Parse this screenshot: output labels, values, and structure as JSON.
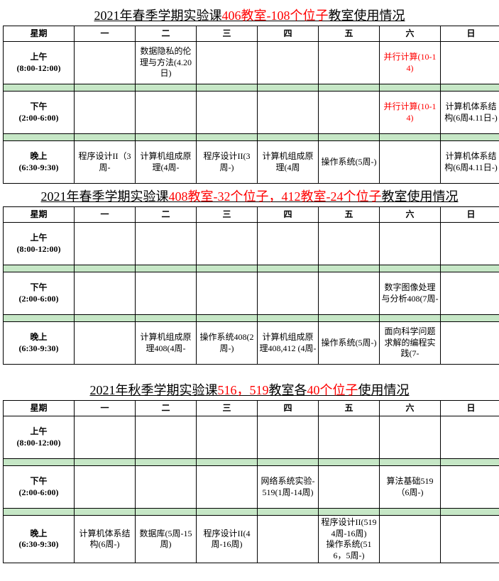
{
  "colors": {
    "text": "#000000",
    "highlight": "#ff0000",
    "separator_bg": "#c6e7c6",
    "border": "#000000",
    "bg": "#ffffff"
  },
  "typography": {
    "base_font": "SimSun",
    "base_size_pt": 12,
    "title_size_pt": 18
  },
  "header_row": {
    "weekday": "星期",
    "days": [
      "一",
      "二",
      "三",
      "四",
      "五",
      "六",
      "日"
    ]
  },
  "timeslots": {
    "morning": {
      "label": "上午",
      "range": "(8:00-12:00)"
    },
    "afternoon": {
      "label": "下午",
      "range": "(2:00-6:00)"
    },
    "evening": {
      "label": "晚上",
      "range": "(6:30-9:30)"
    }
  },
  "tables": [
    {
      "title_parts": {
        "pre": "2021年春季学期实验课",
        "mid_red": "406教室-108个位子",
        "post": "教室使用情况"
      },
      "rows": {
        "morning": [
          {
            "text": ""
          },
          {
            "text": "数据隐私的伦理与方法(4.20日)"
          },
          {
            "text": ""
          },
          {
            "text": ""
          },
          {
            "text": ""
          },
          {
            "text": "并行计算(10-14)",
            "red": true
          },
          {
            "text": ""
          }
        ],
        "afternoon": [
          {
            "text": ""
          },
          {
            "text": ""
          },
          {
            "text": ""
          },
          {
            "text": ""
          },
          {
            "text": ""
          },
          {
            "text": "并行计算(10-14)",
            "red": true
          },
          {
            "text": "计算机体系结构(6周4.11日-)"
          }
        ],
        "evening": [
          {
            "text": "程序设计II（3周-"
          },
          {
            "text": "计算机组成原理(4周-"
          },
          {
            "text": "程序设计II(3周-)"
          },
          {
            "text": "计算机组成原理(4周"
          },
          {
            "text": "操作系统(5周-)"
          },
          {
            "text": ""
          },
          {
            "text": "计算机体系结构(6周4.11日-)"
          }
        ]
      }
    },
    {
      "title_parts": {
        "pre": "2021年春季学期实验课",
        "mid_red": "408教室-32个位子，412教室-24个位子",
        "post": "教室使用情况"
      },
      "rows": {
        "morning": [
          {
            "text": ""
          },
          {
            "text": ""
          },
          {
            "text": ""
          },
          {
            "text": ""
          },
          {
            "text": ""
          },
          {
            "text": ""
          },
          {
            "text": ""
          }
        ],
        "afternoon": [
          {
            "text": ""
          },
          {
            "text": ""
          },
          {
            "text": ""
          },
          {
            "text": ""
          },
          {
            "text": ""
          },
          {
            "text": "数字图像处理与分析408(7周-"
          },
          {
            "text": ""
          }
        ],
        "evening": [
          {
            "text": ""
          },
          {
            "text": "计算机组成原理408(4周-"
          },
          {
            "text": "操作系统408(2周-)"
          },
          {
            "text": "计算机组成原理408,412 (4周-"
          },
          {
            "text": "操作系统(5周-)"
          },
          {
            "text": "面向科学问题求解的编程实践(7-"
          },
          {
            "text": ""
          }
        ]
      }
    },
    {
      "title_parts": {
        "pre": "2021年秋季学期实验课",
        "mid_red1": "516，519",
        "mid_black": "教室各",
        "mid_red2": "40个位子",
        "post": "使用情况"
      },
      "gap_before": true,
      "rows": {
        "morning": [
          {
            "text": ""
          },
          {
            "text": ""
          },
          {
            "text": ""
          },
          {
            "text": ""
          },
          {
            "text": ""
          },
          {
            "text": ""
          },
          {
            "text": ""
          }
        ],
        "afternoon": [
          {
            "text": ""
          },
          {
            "text": ""
          },
          {
            "text": ""
          },
          {
            "text": "网络系统实验-519(1周-14周)"
          },
          {
            "text": ""
          },
          {
            "text": "算法基础519（6周-)"
          },
          {
            "text": ""
          }
        ],
        "evening": [
          {
            "text": "计算机体系结构(6周-)"
          },
          {
            "text": "数据库(5周-15周)"
          },
          {
            "text": "程序设计II(4周-16周)"
          },
          {
            "text": ""
          },
          {
            "text": "程序设计II(519 4周-16周)\n操作系统(516，5周-)"
          },
          {
            "text": ""
          },
          {
            "text": ""
          }
        ]
      }
    }
  ]
}
